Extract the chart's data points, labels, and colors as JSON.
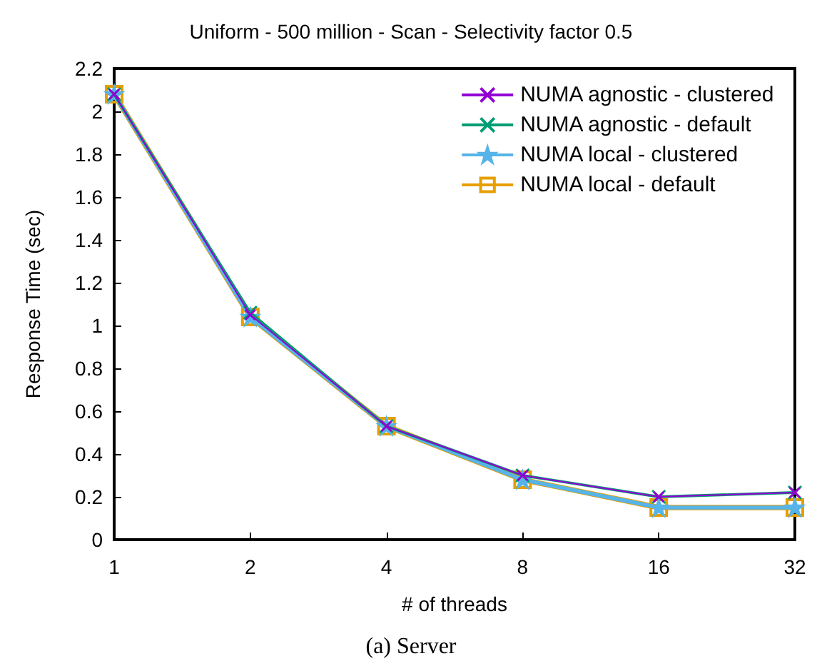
{
  "chart_data": {
    "type": "line",
    "title": "Uniform - 500 million - Scan - Selectivity factor 0.5",
    "xlabel": "# of threads",
    "ylabel": "Response Time (sec)",
    "annotations": [
      "(a) Server"
    ],
    "categories": [
      "1",
      "2",
      "4",
      "8",
      "16",
      "32"
    ],
    "series": [
      {
        "name": "NUMA agnostic - clustered",
        "color": "#9400d3",
        "marker": "cross",
        "values": [
          2.08,
          1.05,
          0.53,
          0.3,
          0.2,
          0.22
        ]
      },
      {
        "name": "NUMA agnostic - default",
        "color": "#009e73",
        "marker": "cross",
        "values": [
          2.08,
          1.06,
          0.53,
          0.3,
          0.2,
          0.22
        ]
      },
      {
        "name": "NUMA local - clustered",
        "color": "#56b4e9",
        "marker": "star",
        "values": [
          2.08,
          1.04,
          0.53,
          0.28,
          0.15,
          0.15
        ]
      },
      {
        "name": "NUMA local - default",
        "color": "#e69f00",
        "marker": "square",
        "values": [
          2.08,
          1.04,
          0.53,
          0.28,
          0.15,
          0.15
        ]
      }
    ],
    "ylim": [
      0,
      2.2
    ],
    "yticks": [
      0,
      0.2,
      0.4,
      0.6,
      0.8,
      1,
      1.2,
      1.4,
      1.6,
      1.8,
      2,
      2.2
    ],
    "grid": false,
    "legend": "top right",
    "line_style": "solid"
  }
}
